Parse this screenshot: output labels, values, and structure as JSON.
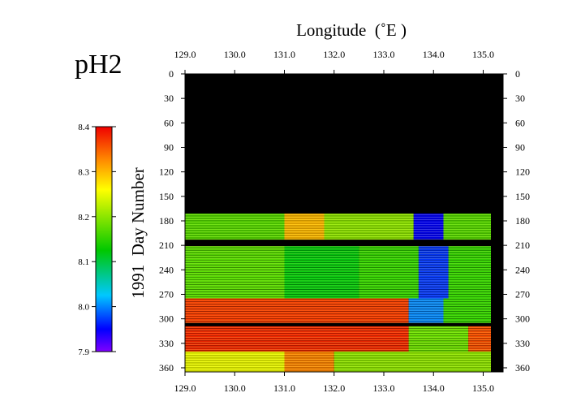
{
  "chart_data": {
    "type": "heatmap",
    "title": "pH2",
    "xlabel": "Longitude  (˚E )",
    "ylabel": "1991  Day Number",
    "xlim": [
      129.0,
      135.4
    ],
    "ylim": [
      0,
      365
    ],
    "x_ticks": [
      "129.0",
      "130.0",
      "131.0",
      "132.0",
      "133.0",
      "134.0",
      "135.0"
    ],
    "x_tick_values": [
      129.0,
      130.0,
      131.0,
      132.0,
      133.0,
      134.0,
      135.0
    ],
    "y_ticks": [
      "0",
      "30",
      "60",
      "90",
      "120",
      "150",
      "180",
      "210",
      "240",
      "270",
      "300",
      "330",
      "360"
    ],
    "y_tick_values": [
      0,
      30,
      60,
      90,
      120,
      150,
      180,
      210,
      240,
      270,
      300,
      330,
      360
    ],
    "colorbar": {
      "min": 7.9,
      "max": 8.4,
      "ticks": [
        "8.4",
        "8.3",
        "8.2",
        "8.1",
        "8.0",
        "7.9"
      ],
      "tick_values": [
        8.4,
        8.3,
        8.2,
        8.1,
        8.0,
        7.9
      ]
    },
    "data_day_range": [
      171,
      365
    ],
    "missing_data_days": [
      [
        0,
        171
      ],
      [
        203,
        211
      ],
      [
        305,
        309
      ]
    ],
    "approx_field": [
      {
        "days": [
          171,
          203
        ],
        "lon": [
          129.0,
          131.0
        ],
        "value": 8.17
      },
      {
        "days": [
          171,
          203
        ],
        "lon": [
          131.0,
          131.8
        ],
        "value": 8.3
      },
      {
        "days": [
          171,
          203
        ],
        "lon": [
          131.8,
          133.6
        ],
        "value": 8.2
      },
      {
        "days": [
          171,
          203
        ],
        "lon": [
          133.6,
          134.2
        ],
        "value": 7.95
      },
      {
        "days": [
          171,
          203
        ],
        "lon": [
          134.2,
          135.2
        ],
        "value": 8.17
      },
      {
        "days": [
          211,
          275
        ],
        "lon": [
          129.0,
          131.0
        ],
        "value": 8.17
      },
      {
        "days": [
          211,
          275
        ],
        "lon": [
          131.0,
          132.5
        ],
        "value": 8.12
      },
      {
        "days": [
          211,
          275
        ],
        "lon": [
          132.5,
          133.7
        ],
        "value": 8.15
      },
      {
        "days": [
          211,
          275
        ],
        "lon": [
          133.7,
          134.3
        ],
        "value": 7.97
      },
      {
        "days": [
          211,
          275
        ],
        "lon": [
          134.3,
          135.2
        ],
        "value": 8.15
      },
      {
        "days": [
          275,
          305
        ],
        "lon": [
          129.0,
          133.5
        ],
        "value": 8.37
      },
      {
        "days": [
          275,
          305
        ],
        "lon": [
          133.5,
          134.2
        ],
        "value": 8.0
      },
      {
        "days": [
          275,
          305
        ],
        "lon": [
          134.2,
          135.2
        ],
        "value": 8.15
      },
      {
        "days": [
          309,
          340
        ],
        "lon": [
          129.0,
          133.5
        ],
        "value": 8.38
      },
      {
        "days": [
          309,
          340
        ],
        "lon": [
          133.5,
          134.7
        ],
        "value": 8.18
      },
      {
        "days": [
          309,
          340
        ],
        "lon": [
          134.7,
          135.2
        ],
        "value": 8.36
      },
      {
        "days": [
          340,
          365
        ],
        "lon": [
          129.0,
          131.0
        ],
        "value": 8.25
      },
      {
        "days": [
          340,
          365
        ],
        "lon": [
          131.0,
          132.0
        ],
        "value": 8.33
      },
      {
        "days": [
          340,
          365
        ],
        "lon": [
          132.0,
          135.2
        ],
        "value": 8.2
      }
    ]
  }
}
